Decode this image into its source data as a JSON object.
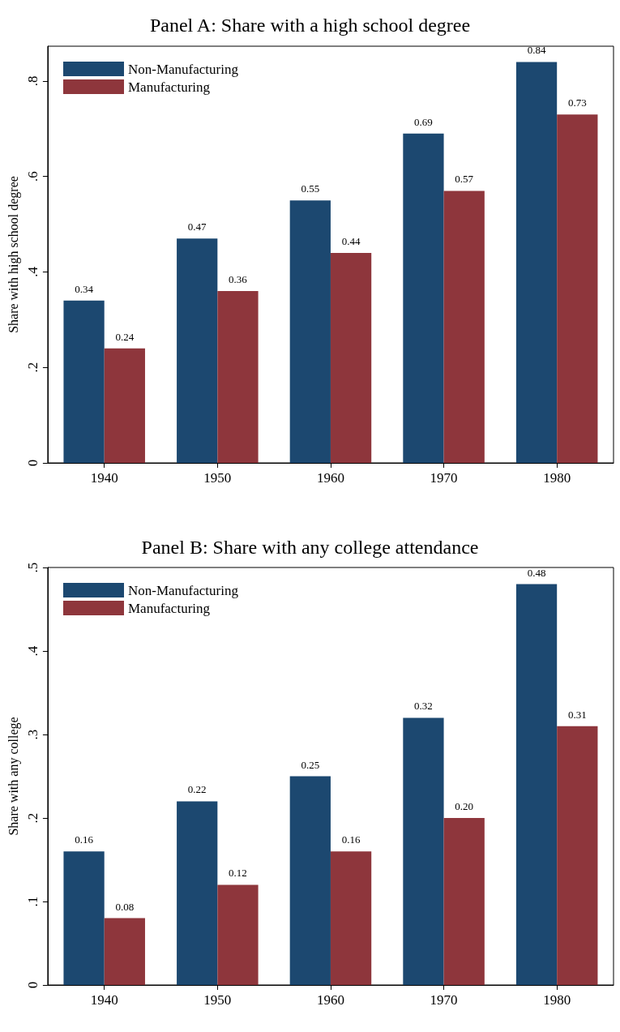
{
  "chart_data": [
    {
      "type": "bar",
      "title": "Panel A: Share with a high school degree",
      "ylabel": "Share with high school degree",
      "categories": [
        "1940",
        "1950",
        "1960",
        "1970",
        "1980"
      ],
      "series": [
        {
          "name": "Non-Manufacturing",
          "color": "#1c4870",
          "values": [
            0.34,
            0.47,
            0.55,
            0.69,
            0.84
          ],
          "value_labels": [
            "0.34",
            "0.47",
            "0.55",
            "0.69",
            "0.84"
          ]
        },
        {
          "name": "Manufacturing",
          "color": "#8e363c",
          "values": [
            0.24,
            0.36,
            0.44,
            0.57,
            0.73
          ],
          "value_labels": [
            "0.24",
            "0.36",
            "0.44",
            "0.57",
            "0.73"
          ]
        }
      ],
      "ylim": [
        0,
        0.873
      ],
      "yticks": [
        0,
        {
          "value": 0.2,
          "label": ".2"
        },
        {
          "value": 0.4,
          "label": ".4"
        },
        {
          "value": 0.6,
          "label": ".6"
        },
        {
          "value": 0.8,
          "label": ".8"
        }
      ],
      "legend": "top left",
      "grid": false
    },
    {
      "type": "bar",
      "title": "Panel B: Share with any college attendance",
      "ylabel": "Share with any college",
      "categories": [
        "1940",
        "1950",
        "1960",
        "1970",
        "1980"
      ],
      "series": [
        {
          "name": "Non-Manufacturing",
          "color": "#1c4870",
          "values": [
            0.16,
            0.22,
            0.25,
            0.32,
            0.48
          ],
          "value_labels": [
            "0.16",
            "0.22",
            "0.25",
            "0.32",
            "0.48"
          ]
        },
        {
          "name": "Manufacturing",
          "color": "#8e363c",
          "values": [
            0.08,
            0.12,
            0.16,
            0.2,
            0.31
          ],
          "value_labels": [
            "0.08",
            "0.12",
            "0.16",
            "0.20",
            "0.31"
          ]
        }
      ],
      "ylim": [
        0,
        0.5
      ],
      "yticks": [
        0,
        {
          "value": 0.1,
          "label": ".1"
        },
        {
          "value": 0.2,
          "label": ".2"
        },
        {
          "value": 0.3,
          "label": ".3"
        },
        {
          "value": 0.4,
          "label": ".4"
        },
        {
          "value": 0.5,
          "label": ".5"
        }
      ],
      "legend": "top left",
      "grid": false
    }
  ]
}
